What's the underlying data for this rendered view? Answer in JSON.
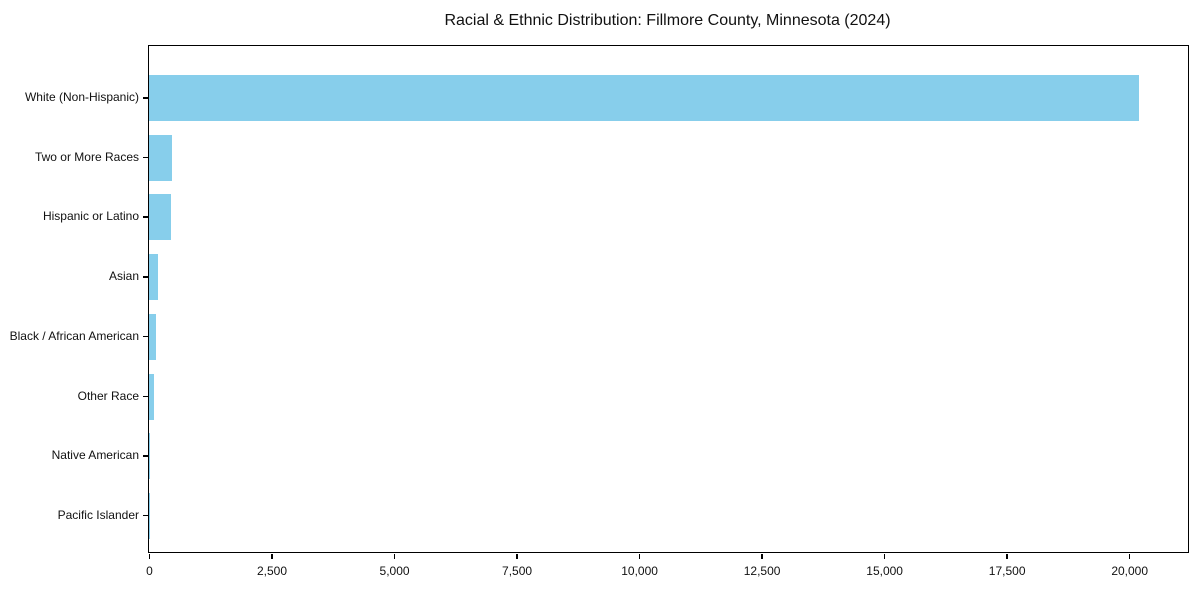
{
  "chart_data": {
    "type": "bar",
    "orientation": "horizontal",
    "title": "Racial & Ethnic Distribution: Fillmore County, Minnesota (2024)",
    "categories": [
      "White (Non-Hispanic)",
      "Two or More Races",
      "Hispanic or Latino",
      "Asian",
      "Black / African American",
      "Other Race",
      "Native American",
      "Pacific Islander"
    ],
    "values": [
      20200,
      460,
      440,
      175,
      135,
      95,
      10,
      4
    ],
    "xlabel": "",
    "ylabel": "",
    "xlim": [
      0,
      21200
    ],
    "x_tick_values": [
      0,
      2500,
      5000,
      7500,
      10000,
      12500,
      15000,
      17500,
      20000
    ],
    "x_tick_labels": [
      "0",
      "2,500",
      "5,000",
      "7,500",
      "10,000",
      "12,500",
      "15,000",
      "17,500",
      "20,000"
    ],
    "bar_color": "#87CEEB",
    "axis_color": "#000000",
    "text_color": "#111111",
    "grid": false,
    "legend": null
  }
}
